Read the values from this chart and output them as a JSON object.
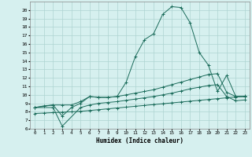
{
  "xlabel": "Humidex (Indice chaleur)",
  "background_color": "#d6f0ef",
  "grid_color": "#aed4d2",
  "line_color": "#1a6b5a",
  "xlim": [
    -0.5,
    23.5
  ],
  "ylim": [
    6,
    21
  ],
  "xticks": [
    0,
    1,
    2,
    3,
    4,
    5,
    6,
    7,
    8,
    9,
    10,
    11,
    12,
    13,
    14,
    15,
    16,
    17,
    18,
    19,
    20,
    21,
    22,
    23
  ],
  "yticks": [
    6,
    7,
    8,
    9,
    10,
    11,
    12,
    13,
    14,
    15,
    16,
    17,
    18,
    19,
    20
  ],
  "curve_x": [
    0,
    1,
    2,
    3,
    4,
    5,
    6,
    7,
    8,
    9,
    10,
    11,
    12,
    13,
    14,
    15,
    16,
    17,
    18,
    19,
    20,
    21,
    22,
    23
  ],
  "curve_y": [
    8.5,
    8.7,
    8.8,
    8.8,
    8.8,
    9.2,
    9.8,
    9.7,
    9.7,
    9.8,
    11.5,
    14.5,
    16.5,
    17.2,
    19.5,
    20.4,
    20.3,
    18.5,
    15.0,
    13.5,
    10.4,
    12.3,
    9.8,
    9.8
  ],
  "line1_x": [
    0,
    2,
    3,
    4,
    5,
    6,
    7,
    8,
    9,
    10,
    11,
    12,
    13,
    14,
    15,
    16,
    17,
    18,
    19,
    20,
    21,
    22,
    23
  ],
  "line1_y": [
    8.5,
    8.8,
    7.5,
    8.5,
    9.0,
    9.8,
    9.7,
    9.7,
    9.8,
    10.0,
    10.2,
    10.4,
    10.6,
    10.9,
    11.2,
    11.5,
    11.8,
    12.1,
    12.4,
    12.5,
    10.3,
    9.8,
    9.8
  ],
  "line2_x": [
    0,
    2,
    3,
    5,
    6,
    7,
    8,
    9,
    10,
    11,
    12,
    13,
    14,
    15,
    16,
    17,
    18,
    19,
    20,
    21,
    22,
    23
  ],
  "line2_y": [
    8.5,
    8.5,
    6.3,
    8.5,
    8.8,
    9.0,
    9.1,
    9.2,
    9.35,
    9.5,
    9.65,
    9.8,
    10.0,
    10.2,
    10.45,
    10.7,
    10.9,
    11.1,
    11.2,
    9.8,
    9.3,
    9.4
  ],
  "line3_x": [
    0,
    1,
    2,
    3,
    4,
    5,
    6,
    7,
    8,
    9,
    10,
    11,
    12,
    13,
    14,
    15,
    16,
    17,
    18,
    19,
    20,
    21,
    22,
    23
  ],
  "line3_y": [
    7.8,
    7.85,
    7.9,
    7.95,
    8.0,
    8.05,
    8.15,
    8.25,
    8.35,
    8.45,
    8.55,
    8.65,
    8.75,
    8.85,
    8.95,
    9.05,
    9.15,
    9.25,
    9.35,
    9.45,
    9.55,
    9.65,
    9.75,
    9.85
  ]
}
